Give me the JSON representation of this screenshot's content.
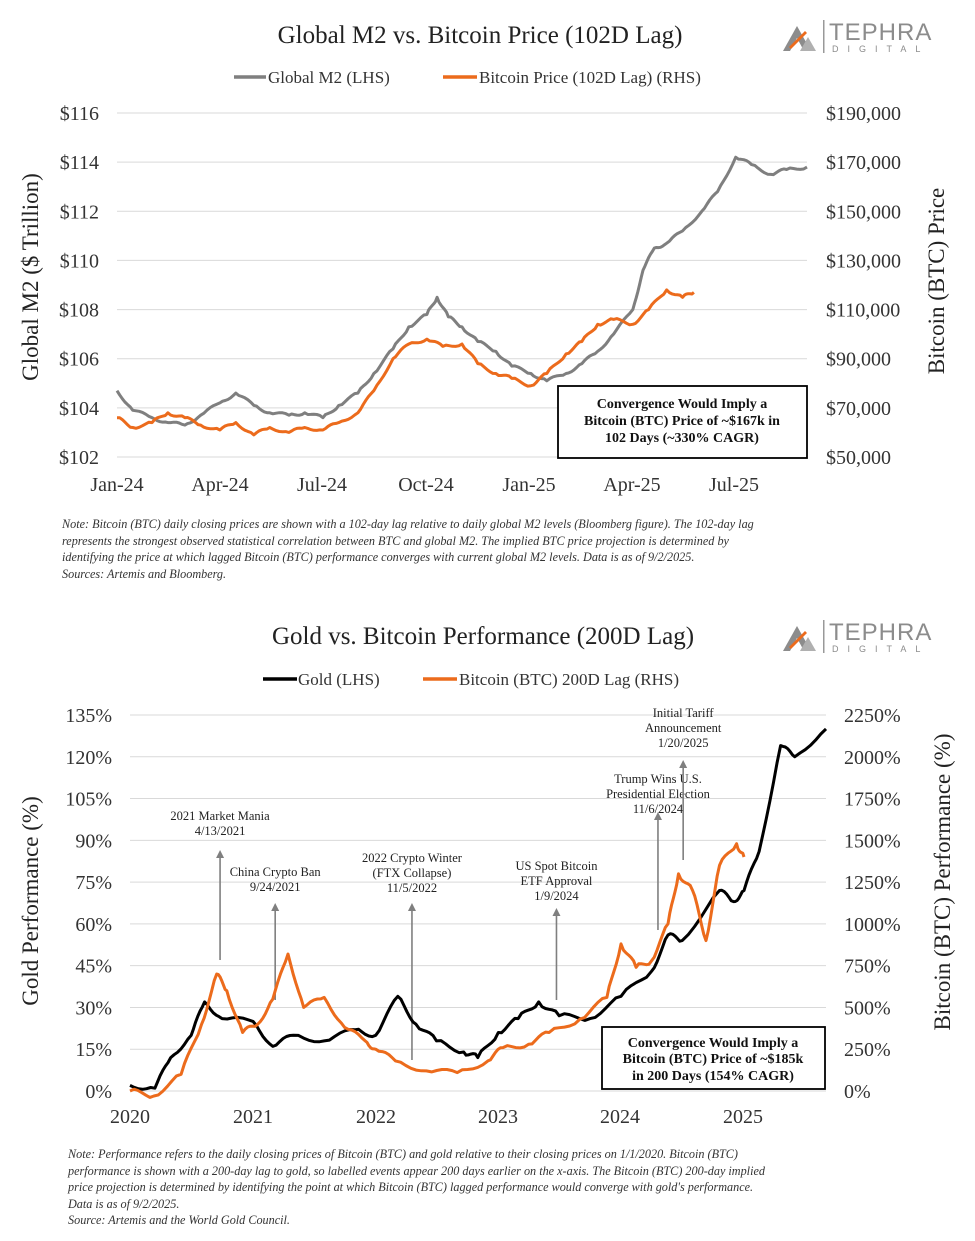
{
  "colors": {
    "m2": "#7f7f7f",
    "btc": "#ec6b1c",
    "gold": "#000000",
    "grid": "#d9d9d9",
    "text": "#222222",
    "logo": "#8c8c8c",
    "annot_arrow": "#7f7f7f"
  },
  "logo": {
    "name": "TEPHRA",
    "sub": "DIGITAL"
  },
  "chart_data": [
    {
      "type": "line",
      "title": "Global M2 vs. Bitcoin Price (102D Lag)",
      "ylabel": "Global M2 ($ Trillion)",
      "y2label": "Bitcoin (BTC) Price",
      "ylim": [
        102,
        116
      ],
      "y2lim": [
        50000,
        190000
      ],
      "yticks": [
        "$102",
        "$104",
        "$106",
        "$108",
        "$110",
        "$112",
        "$114",
        "$116"
      ],
      "y2ticks": [
        "$50,000",
        "$70,000",
        "$90,000",
        "$110,000",
        "$130,000",
        "$150,000",
        "$170,000",
        "$190,000"
      ],
      "xticks": [
        "Jan-24",
        "Apr-24",
        "Jul-24",
        "Oct-24",
        "Jan-25",
        "Apr-25",
        "Jul-25"
      ],
      "xdomain": [
        "2024-01-01",
        "2025-09-02"
      ],
      "legend_position": "top-center",
      "grid": "horizontal",
      "series": [
        {
          "name": "Global M2 (LHS)",
          "axis": "left",
          "points": [
            [
              "2024-01-01",
              104.7
            ],
            [
              "2024-01-15",
              103.9
            ],
            [
              "2024-02-01",
              103.6
            ],
            [
              "2024-02-15",
              103.4
            ],
            [
              "2024-03-01",
              103.3
            ],
            [
              "2024-03-15",
              103.7
            ],
            [
              "2024-04-01",
              104.2
            ],
            [
              "2024-04-15",
              104.6
            ],
            [
              "2024-05-01",
              104.1
            ],
            [
              "2024-05-15",
              103.8
            ],
            [
              "2024-06-01",
              103.7
            ],
            [
              "2024-06-15",
              103.8
            ],
            [
              "2024-07-01",
              103.6
            ],
            [
              "2024-07-15",
              104.1
            ],
            [
              "2024-08-01",
              104.6
            ],
            [
              "2024-08-15",
              105.4
            ],
            [
              "2024-09-01",
              106.4
            ],
            [
              "2024-09-15",
              107.3
            ],
            [
              "2024-10-01",
              107.8
            ],
            [
              "2024-10-10",
              108.5
            ],
            [
              "2024-10-20",
              107.7
            ],
            [
              "2024-11-01",
              107.3
            ],
            [
              "2024-11-15",
              106.7
            ],
            [
              "2024-12-01",
              106.3
            ],
            [
              "2024-12-15",
              105.7
            ],
            [
              "2025-01-01",
              105.4
            ],
            [
              "2025-01-15",
              105.1
            ],
            [
              "2025-02-01",
              105.4
            ],
            [
              "2025-02-15",
              105.8
            ],
            [
              "2025-03-01",
              106.3
            ],
            [
              "2025-03-15",
              107.0
            ],
            [
              "2025-04-01",
              108.0
            ],
            [
              "2025-04-10",
              109.6
            ],
            [
              "2025-04-20",
              110.5
            ],
            [
              "2025-05-01",
              110.7
            ],
            [
              "2025-05-15",
              111.2
            ],
            [
              "2025-06-01",
              112.0
            ],
            [
              "2025-06-15",
              112.8
            ],
            [
              "2025-07-01",
              114.2
            ],
            [
              "2025-07-15",
              113.9
            ],
            [
              "2025-08-01",
              113.5
            ],
            [
              "2025-08-15",
              113.7
            ],
            [
              "2025-09-02",
              113.8
            ]
          ]
        },
        {
          "name": "Bitcoin Price (102D Lag) (RHS)",
          "axis": "right",
          "points": [
            [
              "2024-01-01",
              66000
            ],
            [
              "2024-01-15",
              62000
            ],
            [
              "2024-02-01",
              64000
            ],
            [
              "2024-02-15",
              68000
            ],
            [
              "2024-03-01",
              66000
            ],
            [
              "2024-03-15",
              63000
            ],
            [
              "2024-04-01",
              61000
            ],
            [
              "2024-04-15",
              64000
            ],
            [
              "2024-05-01",
              59000
            ],
            [
              "2024-05-15",
              62000
            ],
            [
              "2024-06-01",
              60000
            ],
            [
              "2024-06-15",
              62000
            ],
            [
              "2024-07-01",
              61000
            ],
            [
              "2024-07-15",
              64000
            ],
            [
              "2024-08-01",
              68000
            ],
            [
              "2024-08-15",
              77000
            ],
            [
              "2024-09-01",
              90000
            ],
            [
              "2024-09-15",
              96000
            ],
            [
              "2024-10-01",
              98000
            ],
            [
              "2024-10-15",
              95000
            ],
            [
              "2024-11-01",
              96000
            ],
            [
              "2024-11-15",
              88000
            ],
            [
              "2024-12-01",
              84000
            ],
            [
              "2024-12-15",
              82000
            ],
            [
              "2025-01-01",
              79000
            ],
            [
              "2025-01-15",
              84000
            ],
            [
              "2025-02-01",
              92000
            ],
            [
              "2025-02-15",
              97000
            ],
            [
              "2025-03-01",
              104000
            ],
            [
              "2025-03-15",
              106000
            ],
            [
              "2025-04-01",
              104000
            ],
            [
              "2025-04-15",
              110000
            ],
            [
              "2025-05-01",
              118000
            ],
            [
              "2025-05-15",
              115000
            ],
            [
              "2025-05-25",
              117000
            ]
          ]
        }
      ],
      "annotation": {
        "lines": [
          "Convergence Would Imply a",
          "Bitcoin (BTC) Price of ~$167k in",
          "102 Days (~330% CAGR)"
        ]
      }
    },
    {
      "type": "line",
      "title": "Gold vs. Bitcoin Performance (200D Lag)",
      "ylabel": "Gold Performance (%)",
      "y2label": "Bitcoin (BTC) Performance (%)",
      "ylim": [
        0,
        135
      ],
      "y2lim": [
        0,
        2250
      ],
      "yticks": [
        "0%",
        "15%",
        "30%",
        "45%",
        "60%",
        "75%",
        "90%",
        "105%",
        "120%",
        "135%"
      ],
      "y2ticks": [
        "0%",
        "250%",
        "500%",
        "750%",
        "1000%",
        "1250%",
        "1500%",
        "1750%",
        "2000%",
        "2250%"
      ],
      "xticks": [
        "2020",
        "2021",
        "2022",
        "2023",
        "2024",
        "2025"
      ],
      "xdomain": [
        "2020-01-01",
        "2025-09-02"
      ],
      "legend_position": "top-center",
      "grid": "horizontal",
      "series": [
        {
          "name": "Gold (LHS)",
          "axis": "left",
          "points": [
            [
              "2020-01-01",
              2
            ],
            [
              "2020-03-15",
              1
            ],
            [
              "2020-05-01",
              12
            ],
            [
              "2020-07-01",
              20
            ],
            [
              "2020-08-10",
              32
            ],
            [
              "2020-10-01",
              26
            ],
            [
              "2021-01-01",
              25
            ],
            [
              "2021-03-01",
              16
            ],
            [
              "2021-05-01",
              20
            ],
            [
              "2021-08-01",
              18
            ],
            [
              "2021-11-01",
              22
            ],
            [
              "2022-01-01",
              20
            ],
            [
              "2022-03-08",
              34
            ],
            [
              "2022-05-01",
              24
            ],
            [
              "2022-07-01",
              18
            ],
            [
              "2022-09-20",
              14
            ],
            [
              "2022-11-01",
              12
            ],
            [
              "2023-01-01",
              21
            ],
            [
              "2023-03-01",
              26
            ],
            [
              "2023-05-01",
              32
            ],
            [
              "2023-07-01",
              27
            ],
            [
              "2023-10-01",
              26
            ],
            [
              "2024-01-01",
              34
            ],
            [
              "2024-04-01",
              43
            ],
            [
              "2024-05-20",
              56
            ],
            [
              "2024-07-01",
              54
            ],
            [
              "2024-10-20",
              72
            ],
            [
              "2024-12-01",
              68
            ],
            [
              "2025-01-01",
              72
            ],
            [
              "2025-02-15",
              86
            ],
            [
              "2025-04-20",
              124
            ],
            [
              "2025-06-01",
              120
            ],
            [
              "2025-09-02",
              130
            ]
          ]
        },
        {
          "name": "Bitcoin (BTC) 200D Lag (RHS)",
          "axis": "right",
          "points": [
            [
              "2020-01-01",
              0
            ],
            [
              "2020-03-12",
              -30
            ],
            [
              "2020-06-01",
              100
            ],
            [
              "2020-08-01",
              400
            ],
            [
              "2020-09-15",
              700
            ],
            [
              "2020-10-15",
              600
            ],
            [
              "2020-12-01",
              350
            ],
            [
              "2021-01-15",
              400
            ],
            [
              "2021-03-01",
              550
            ],
            [
              "2021-04-15",
              820
            ],
            [
              "2021-06-01",
              500
            ],
            [
              "2021-08-01",
              560
            ],
            [
              "2021-10-01",
              380
            ],
            [
              "2021-12-01",
              300
            ],
            [
              "2022-01-01",
              250
            ],
            [
              "2022-03-01",
              180
            ],
            [
              "2022-06-01",
              120
            ],
            [
              "2022-09-01",
              110
            ],
            [
              "2022-12-01",
              180
            ],
            [
              "2023-01-15",
              260
            ],
            [
              "2023-04-01",
              280
            ],
            [
              "2023-06-01",
              350
            ],
            [
              "2023-09-01",
              430
            ],
            [
              "2023-11-20",
              560
            ],
            [
              "2024-01-01",
              880
            ],
            [
              "2024-02-15",
              740
            ],
            [
              "2024-04-01",
              780
            ],
            [
              "2024-05-20",
              1000
            ],
            [
              "2024-06-20",
              1300
            ],
            [
              "2024-08-01",
              1200
            ],
            [
              "2024-09-10",
              900
            ],
            [
              "2024-10-20",
              1350
            ],
            [
              "2024-12-10",
              1480
            ],
            [
              "2025-01-01",
              1400
            ]
          ]
        }
      ],
      "annotations": [
        {
          "lines": [
            "2021 Market Mania",
            "4/13/2021"
          ],
          "date": "2020-09-25"
        },
        {
          "lines": [
            "China Crypto Ban",
            "9/24/2021"
          ],
          "date": "2021-03-08"
        },
        {
          "lines": [
            "2022 Crypto Winter",
            "(FTX Collapse)",
            "11/5/2022"
          ],
          "date": "2022-04-19"
        },
        {
          "lines": [
            "US Spot Bitcoin",
            "ETF Approval",
            "1/9/2024"
          ],
          "date": "2023-06-23"
        },
        {
          "lines": [
            "Trump Wins U.S.",
            "Presidential Election",
            "11/6/2024"
          ],
          "date": "2024-04-20"
        },
        {
          "lines": [
            "Initial Tariff",
            "Announcement",
            "1/20/2025"
          ],
          "date": "2024-07-04"
        }
      ],
      "box": {
        "lines": [
          "Convergence Would Imply a",
          "Bitcoin (BTC) Price of ~$185k",
          "in 200 Days (154% CAGR)"
        ]
      }
    }
  ],
  "notes": {
    "top": [
      "Note: Bitcoin (BTC) daily closing prices are shown with a 102-day lag relative to daily global M2 levels (Bloomberg figure). The 102-day lag",
      "represents the strongest observed statistical correlation between BTC and global M2. The implied BTC price projection is determined by",
      "identifying the price at which lagged Bitcoin (BTC) performance converges with current global M2 levels. Data is as of 9/2/2025.",
      "Sources: Artemis and Bloomberg."
    ],
    "bottom": [
      "Note: Performance refers to the daily closing prices of Bitcoin (BTC) and gold relative to their closing prices on 1/1/2020. Bitcoin (BTC)",
      "performance is shown with a 200-day lag to gold, so labelled events appear 200 days earlier on the x-axis. The Bitcoin (BTC) 200-day implied",
      "price projection is determined by identifying the point at which Bitcoin (BTC) lagged performance would converge with gold's performance.",
      "Data is as of 9/2/2025.",
      "Source: Artemis and the World Gold Council."
    ]
  }
}
